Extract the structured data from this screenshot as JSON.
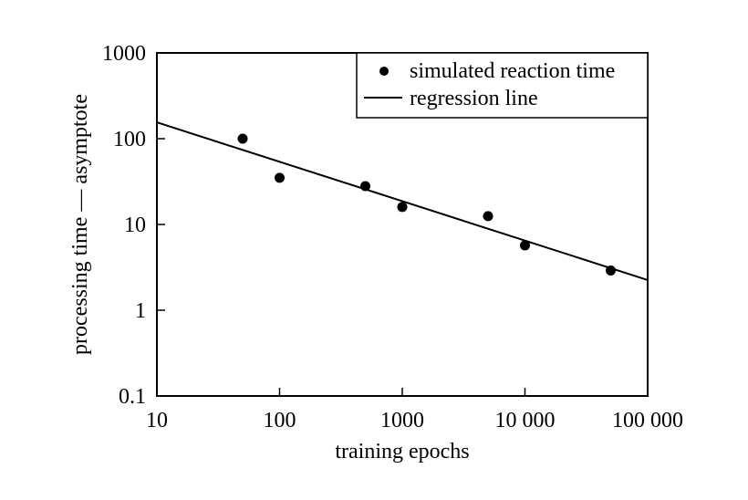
{
  "chart_data": {
    "type": "scatter",
    "xlabel": "training epochs",
    "ylabel": "processing time — asymptote",
    "xscale": "log",
    "yscale": "log",
    "xlim": [
      10,
      100000
    ],
    "ylim": [
      0.1,
      1000
    ],
    "xticks": [
      {
        "value": 10,
        "label": "10"
      },
      {
        "value": 100,
        "label": "100"
      },
      {
        "value": 1000,
        "label": "1000"
      },
      {
        "value": 10000,
        "label": "10 000"
      },
      {
        "value": 100000,
        "label": "100 000"
      }
    ],
    "yticks": [
      {
        "value": 0.1,
        "label": "0.1"
      },
      {
        "value": 1,
        "label": "1"
      },
      {
        "value": 10,
        "label": "10"
      },
      {
        "value": 100,
        "label": "100"
      },
      {
        "value": 1000,
        "label": "1000"
      }
    ],
    "grid": false,
    "legend_position": "top-right",
    "series": [
      {
        "name": "simulated reaction time",
        "kind": "scatter",
        "points": [
          {
            "x": 50,
            "y": 100
          },
          {
            "x": 100,
            "y": 35
          },
          {
            "x": 500,
            "y": 28
          },
          {
            "x": 1000,
            "y": 16
          },
          {
            "x": 5000,
            "y": 12.5
          },
          {
            "x": 10000,
            "y": 5.7
          },
          {
            "x": 50000,
            "y": 2.9
          }
        ]
      },
      {
        "name": "regression line",
        "kind": "line",
        "points": [
          {
            "x": 10,
            "y": 155
          },
          {
            "x": 100000,
            "y": 2.25
          }
        ]
      }
    ]
  }
}
